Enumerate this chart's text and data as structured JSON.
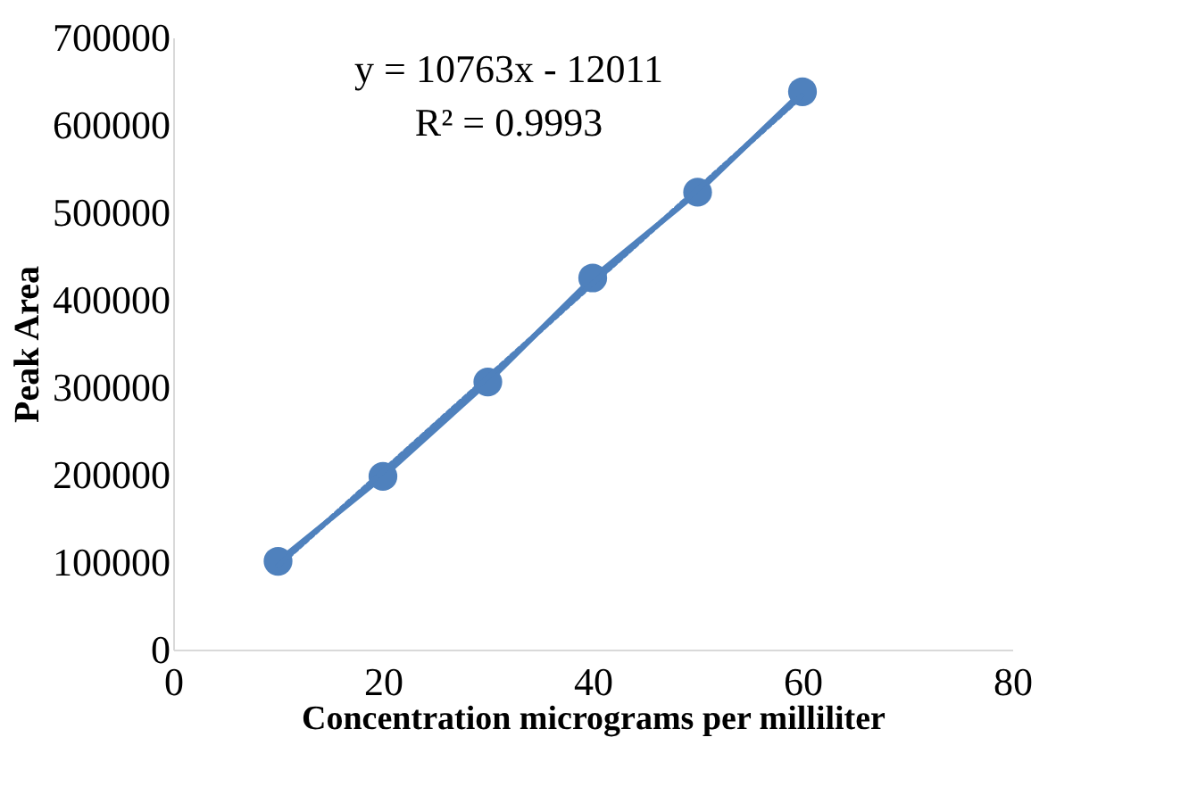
{
  "chart_data": {
    "type": "line",
    "xlabel": "Concentration micrograms per milliliter",
    "ylabel": "Peak Area",
    "x": [
      10,
      20,
      30,
      40,
      50,
      60
    ],
    "series": [
      {
        "marker": "circle",
        "line_style": "solid",
        "color": "#4f81bd",
        "values": [
          101000,
          198000,
          306000,
          425000,
          523000,
          638000
        ]
      },
      {
        "marker": "none",
        "line_style": "dotted",
        "color": "#4f81bd",
        "x": [
          10,
          60
        ],
        "values": [
          96000,
          634000
        ]
      }
    ],
    "annotations": [
      "y = 10763x - 12011",
      "R² = 0.9993"
    ],
    "xlim": [
      0,
      80
    ],
    "xticks": [
      0,
      20,
      40,
      60,
      80
    ],
    "ylim": [
      0,
      700000
    ],
    "yticks": [
      0,
      100000,
      200000,
      300000,
      400000,
      500000,
      600000,
      700000
    ],
    "grid": false
  }
}
